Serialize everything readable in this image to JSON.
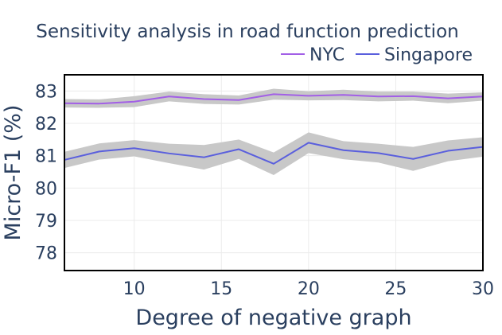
{
  "chart_data": {
    "type": "line",
    "title": "Sensitivity analysis in road function prediction",
    "xlabel": "Degree of negative graph",
    "ylabel": "Micro-F1 (%)",
    "xlim": [
      6,
      30
    ],
    "ylim": [
      77.45,
      83.5
    ],
    "x": [
      6,
      8,
      10,
      12,
      14,
      16,
      18,
      20,
      22,
      24,
      26,
      28,
      30
    ],
    "xticks": [
      10,
      15,
      20,
      25,
      30
    ],
    "yticks": [
      78,
      79,
      80,
      81,
      82,
      83
    ],
    "grid": true,
    "legend_position": "top-right",
    "band_color": "#c8c8c8",
    "series": [
      {
        "name": "NYC",
        "color": "#a25fe6",
        "values": [
          82.62,
          82.61,
          82.67,
          82.83,
          82.75,
          82.72,
          82.9,
          82.85,
          82.88,
          82.83,
          82.84,
          82.77,
          82.83
        ],
        "upper": [
          82.75,
          82.74,
          82.84,
          82.98,
          82.9,
          82.86,
          83.07,
          82.99,
          83.04,
          82.98,
          82.98,
          82.92,
          82.96
        ],
        "lower": [
          82.49,
          82.48,
          82.5,
          82.68,
          82.6,
          82.58,
          82.73,
          82.71,
          82.72,
          82.68,
          82.7,
          82.62,
          82.7
        ]
      },
      {
        "name": "Singapore",
        "color": "#5a5fdd",
        "values": [
          80.87,
          81.13,
          81.23,
          81.07,
          80.95,
          81.2,
          80.75,
          81.4,
          81.17,
          81.08,
          80.9,
          81.15,
          81.27
        ],
        "upper": [
          81.12,
          81.38,
          81.48,
          81.37,
          81.33,
          81.5,
          81.1,
          81.72,
          81.45,
          81.37,
          81.27,
          81.47,
          81.57
        ],
        "lower": [
          80.62,
          80.88,
          80.98,
          80.77,
          80.57,
          80.9,
          80.4,
          81.08,
          80.89,
          80.79,
          80.53,
          80.83,
          80.97
        ]
      }
    ]
  }
}
